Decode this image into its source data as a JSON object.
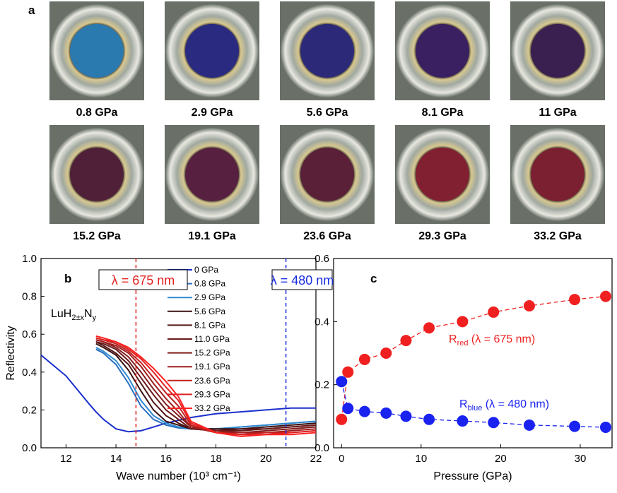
{
  "panel_a": {
    "label": "a",
    "images": [
      {
        "label": "0.8 GPa"
      },
      {
        "label": "2.9 GPa"
      },
      {
        "label": "5.6 GPa"
      },
      {
        "label": "8.1 GPa"
      },
      {
        "label": "11 GPa"
      },
      {
        "label": "15.2 GPa"
      },
      {
        "label": "19.1 GPa"
      },
      {
        "label": "23.6 GPa"
      },
      {
        "label": "29.3 GPa"
      },
      {
        "label": "33.2 GPa"
      }
    ]
  },
  "chart_data": [
    {
      "type": "line",
      "panel": "b",
      "xlabel": "Wave number (10³ cm⁻¹)",
      "ylabel": "Reflectivity",
      "annotation": [
        "LuH",
        "2±x",
        "N",
        "y"
      ],
      "vlines": [
        {
          "x": 14.8,
          "label": "λ = 675 nm",
          "color": "#e02020"
        },
        {
          "x": 20.8,
          "label": "λ = 480 nm",
          "color": "#1a2ee0"
        }
      ],
      "xlim": [
        11,
        22
      ],
      "xticks": [
        12,
        14,
        16,
        18,
        20,
        22
      ],
      "ylim": [
        0,
        1
      ],
      "yticks": [
        {
          "value": 0,
          "label": "0.0"
        },
        0.2,
        0.4,
        0.6,
        0.8,
        {
          "value": 1,
          "label": "1.0"
        }
      ],
      "x": [
        11,
        12,
        13,
        13.2,
        13.5,
        14,
        14.5,
        15,
        15.5,
        16,
        16.5,
        17,
        18,
        19,
        20,
        21,
        22
      ],
      "series": [
        {
          "name": "0 GPa",
          "color": "#1a2ecc",
          "values": [
            0.49,
            0.38,
            0.22,
            0.19,
            0.15,
            0.1,
            0.085,
            0.09,
            0.11,
            0.13,
            0.145,
            0.16,
            0.18,
            0.19,
            0.2,
            0.21,
            0.21
          ]
        },
        {
          "name": "0.8 GPa",
          "color": "#2a6fc0",
          "values": [
            null,
            null,
            null,
            0.52,
            0.5,
            0.44,
            0.34,
            0.22,
            0.15,
            0.12,
            0.105,
            0.1,
            0.1,
            0.11,
            0.12,
            0.13,
            0.14
          ]
        },
        {
          "name": "2.9 GPa",
          "color": "#2f8ad0",
          "values": [
            null,
            null,
            null,
            0.53,
            0.51,
            0.46,
            0.37,
            0.25,
            0.17,
            0.13,
            0.11,
            0.1,
            0.1,
            0.11,
            0.12,
            0.13,
            0.14
          ]
        },
        {
          "name": "5.6 GPa",
          "color": "#3b1010",
          "values": [
            null,
            null,
            null,
            0.55,
            0.53,
            0.49,
            0.41,
            0.3,
            0.2,
            0.14,
            0.12,
            0.1,
            0.1,
            0.1,
            0.11,
            0.12,
            0.13
          ]
        },
        {
          "name": "8.1 GPa",
          "color": "#521414",
          "values": [
            null,
            null,
            null,
            0.56,
            0.54,
            0.5,
            0.44,
            0.34,
            0.24,
            0.17,
            0.13,
            0.1,
            0.09,
            0.1,
            0.1,
            0.11,
            0.12
          ]
        },
        {
          "name": "11.0 GPa",
          "color": "#6a1818",
          "values": [
            null,
            null,
            null,
            0.56,
            0.55,
            0.52,
            0.46,
            0.37,
            0.28,
            0.2,
            0.15,
            0.1,
            0.09,
            0.09,
            0.1,
            0.11,
            0.12
          ]
        },
        {
          "name": "15.2 GPa",
          "color": "#821c1c",
          "values": [
            null,
            null,
            null,
            0.57,
            0.56,
            0.53,
            0.48,
            0.4,
            0.31,
            0.23,
            0.17,
            0.11,
            0.09,
            0.08,
            0.09,
            0.1,
            0.11
          ]
        },
        {
          "name": "19.1 GPa",
          "color": "#a01e1e",
          "values": [
            null,
            null,
            null,
            0.57,
            0.56,
            0.54,
            0.5,
            0.43,
            0.34,
            0.26,
            0.19,
            0.11,
            0.08,
            0.08,
            0.08,
            0.09,
            0.1
          ]
        },
        {
          "name": "23.6 GPa",
          "color": "#c02020",
          "values": [
            null,
            null,
            null,
            0.58,
            0.57,
            0.55,
            0.51,
            0.45,
            0.37,
            0.29,
            0.22,
            0.12,
            0.08,
            0.07,
            0.08,
            0.08,
            0.09
          ]
        },
        {
          "name": "29.3 GPa",
          "color": "#e02020",
          "values": [
            null,
            null,
            null,
            0.58,
            0.57,
            0.56,
            0.52,
            0.47,
            0.4,
            0.32,
            0.25,
            0.13,
            0.08,
            0.07,
            0.07,
            0.08,
            0.09
          ]
        },
        {
          "name": "33.2 GPa",
          "color": "#ff2020",
          "values": [
            null,
            null,
            null,
            0.59,
            0.58,
            0.56,
            0.53,
            0.48,
            0.42,
            0.35,
            0.27,
            0.14,
            0.08,
            0.06,
            0.07,
            0.07,
            0.08
          ]
        }
      ]
    },
    {
      "type": "scatter",
      "panel": "c",
      "xlabel": "Pressure (GPa)",
      "xlim": [
        -1,
        34
      ],
      "xticks": [
        0,
        10,
        20,
        30
      ],
      "ylim": [
        0,
        0.6
      ],
      "yticks": [
        {
          "value": 0,
          "label": "0.0"
        },
        0.2,
        0.4,
        0.6
      ],
      "x": [
        0,
        0.8,
        2.9,
        5.6,
        8.1,
        11,
        15.2,
        19.1,
        23.6,
        29.3,
        33.2
      ],
      "series": [
        {
          "name": [
            "R",
            "red",
            " (λ = 675 nm)"
          ],
          "color": "#f02020",
          "values": [
            0.09,
            0.24,
            0.28,
            0.3,
            0.34,
            0.38,
            0.4,
            0.43,
            0.45,
            0.47,
            0.48
          ]
        },
        {
          "name": [
            "R",
            "blue",
            " (λ = 480 nm)"
          ],
          "color": "#1a22f0",
          "values": [
            0.21,
            0.125,
            0.115,
            0.11,
            0.1,
            0.09,
            0.085,
            0.08,
            0.072,
            0.068,
            0.065
          ]
        }
      ]
    }
  ]
}
